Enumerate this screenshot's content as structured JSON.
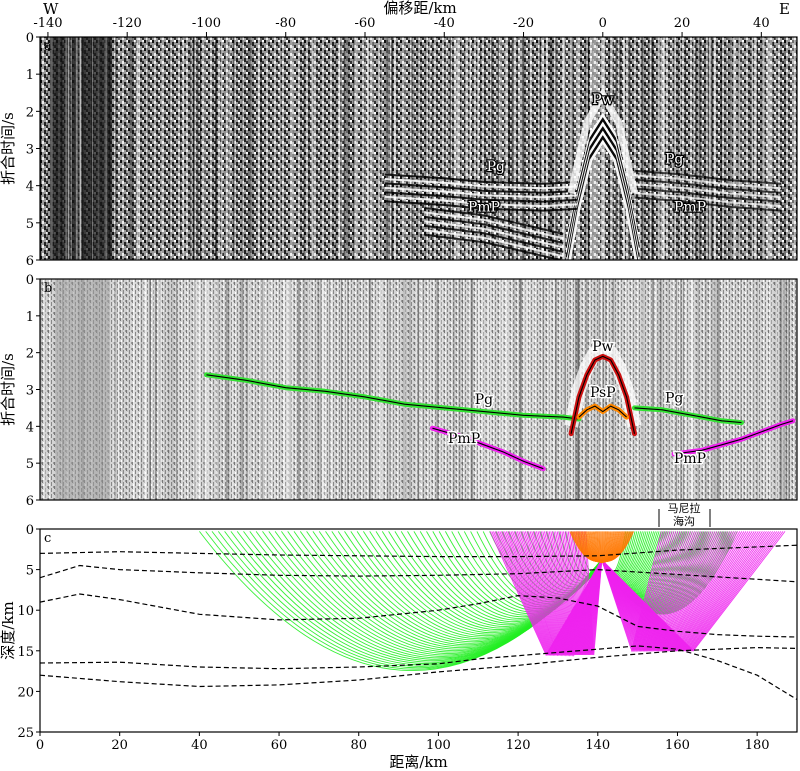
{
  "figure": {
    "top_axis_title": "偏移距/km",
    "west_label": "W",
    "east_label": "E",
    "region_label_line1": "马尼拉",
    "region_label_line2": "海沟"
  },
  "chart_data": [
    {
      "panel": "a",
      "type": "seismic-section",
      "title": "",
      "xlabel": "偏移距/km",
      "ylabel": "折合时间/s",
      "xlim": [
        -142,
        49
      ],
      "ylim": [
        6,
        0
      ],
      "xticks": [
        -140,
        -120,
        -100,
        -80,
        -60,
        -40,
        -20,
        0,
        20,
        40
      ],
      "yticks": [
        0,
        1,
        2,
        3,
        4,
        5,
        6
      ],
      "phase_labels": [
        {
          "text": "Pw",
          "x": 0,
          "y": 1.8
        },
        {
          "text": "Pg",
          "x": -27,
          "y": 3.6
        },
        {
          "text": "PmP",
          "x": -30,
          "y": 4.7
        },
        {
          "text": "Pg",
          "x": 18,
          "y": 3.4
        },
        {
          "text": "PmP",
          "x": 22,
          "y": 4.7
        }
      ]
    },
    {
      "panel": "b",
      "type": "line",
      "title": "",
      "xlabel": "",
      "ylabel": "折合时间/s",
      "xlim": [
        -142,
        49
      ],
      "ylim": [
        6,
        0
      ],
      "yticks": [
        0,
        1,
        2,
        3,
        4,
        5,
        6
      ],
      "series": [
        {
          "phase": "Pg",
          "color": "#33e233",
          "x": [
            -100,
            -90,
            -80,
            -70,
            -60,
            -50,
            -40,
            -30,
            -20,
            -10,
            -6
          ],
          "y": [
            2.6,
            2.75,
            2.95,
            3.05,
            3.2,
            3.4,
            3.5,
            3.6,
            3.7,
            3.75,
            3.8
          ]
        },
        {
          "phase": "Pg",
          "color": "#33e233",
          "x": [
            8,
            15,
            20,
            25,
            30,
            35
          ],
          "y": [
            3.5,
            3.55,
            3.65,
            3.75,
            3.85,
            3.9
          ]
        },
        {
          "phase": "PmP",
          "color": "#ee22ee",
          "x": [
            -43,
            -35,
            -30,
            -25,
            -20,
            -15
          ],
          "y": [
            4.05,
            4.3,
            4.5,
            4.7,
            4.95,
            5.15
          ]
        },
        {
          "phase": "PmP",
          "color": "#ee22ee",
          "x": [
            18,
            25,
            30,
            35,
            40,
            45,
            48
          ],
          "y": [
            4.75,
            4.65,
            4.5,
            4.35,
            4.15,
            3.95,
            3.85
          ]
        },
        {
          "phase": "Pw",
          "color": "#cc1111",
          "x": [
            -8,
            -6,
            -4,
            -2,
            0,
            2,
            4,
            6,
            8
          ],
          "y": [
            4.2,
            3.2,
            2.6,
            2.2,
            2.1,
            2.2,
            2.6,
            3.2,
            4.2
          ]
        },
        {
          "phase": "PsP",
          "color": "#ff8800",
          "x": [
            -6,
            -4,
            -2,
            0,
            2,
            4,
            6
          ],
          "y": [
            3.75,
            3.55,
            3.45,
            3.6,
            3.45,
            3.55,
            3.75
          ]
        }
      ],
      "phase_labels": [
        {
          "text": "Pw",
          "x": 0,
          "y": 1.95
        },
        {
          "text": "PsP",
          "x": 0,
          "y": 3.2
        },
        {
          "text": "Pg",
          "x": -30,
          "y": 3.4
        },
        {
          "text": "PmP",
          "x": -35,
          "y": 4.45
        },
        {
          "text": "Pg",
          "x": 18,
          "y": 3.35
        },
        {
          "text": "PmP",
          "x": 22,
          "y": 5.0
        }
      ]
    },
    {
      "panel": "c",
      "type": "ray-diagram",
      "title": "",
      "xlabel": "距离/km",
      "ylabel": "深度/km",
      "xlim": [
        0,
        190
      ],
      "ylim": [
        25,
        0
      ],
      "xticks": [
        0,
        20,
        40,
        60,
        80,
        100,
        120,
        140,
        160,
        180
      ],
      "yticks": [
        0,
        5,
        10,
        15,
        20,
        25
      ],
      "source": {
        "x": 141,
        "depth": 3.8
      },
      "interfaces": [
        {
          "x": [
            0,
            20,
            40,
            60,
            80,
            100,
            120,
            140,
            160,
            180,
            190
          ],
          "depth": [
            3.0,
            2.8,
            3.0,
            3.2,
            3.3,
            3.4,
            3.4,
            3.3,
            2.6,
            2.2,
            2.0
          ]
        },
        {
          "x": [
            0,
            10,
            20,
            40,
            60,
            80,
            100,
            120,
            140,
            160,
            180,
            190
          ],
          "depth": [
            6.0,
            4.5,
            5.0,
            5.4,
            5.7,
            5.8,
            5.7,
            5.5,
            5.0,
            5.6,
            6.2,
            6.5
          ]
        },
        {
          "x": [
            0,
            10,
            20,
            40,
            60,
            80,
            100,
            110,
            120,
            130,
            140,
            150,
            160,
            170,
            180,
            190
          ],
          "depth": [
            9.0,
            8.0,
            8.7,
            10.5,
            11.2,
            11.0,
            10.0,
            9.2,
            8.2,
            8.5,
            9.5,
            12.0,
            12.6,
            13.0,
            13.2,
            13.3
          ]
        },
        {
          "x": [
            0,
            20,
            40,
            60,
            80,
            100,
            110,
            120,
            130,
            140,
            150,
            160,
            170,
            180,
            190
          ],
          "depth": [
            16.5,
            16.4,
            17.0,
            17.2,
            17.0,
            16.6,
            16.0,
            15.6,
            15.2,
            14.8,
            14.4,
            14.8,
            16.2,
            18.0,
            21.0
          ]
        },
        {
          "x": [
            0,
            20,
            40,
            60,
            80,
            100,
            120,
            140,
            160,
            180,
            190
          ],
          "depth": [
            18.0,
            18.8,
            19.4,
            19.2,
            18.6,
            17.6,
            16.8,
            15.8,
            15.0,
            14.6,
            14.7
          ]
        }
      ],
      "ray_families": [
        {
          "phase": "Pg",
          "color": "#22ee22",
          "x_from": 40,
          "x_to": 135,
          "max_depth": 17.5
        },
        {
          "phase": "Pg",
          "color": "#22ee22",
          "x_from": 147,
          "x_to": 175,
          "max_depth": 10.5
        },
        {
          "phase": "PmP",
          "color": "#ee22ee",
          "x_from": 113,
          "x_to": 137,
          "reflector_depth": 15.5
        },
        {
          "phase": "PmP",
          "color": "#ee22ee",
          "x_from": 156,
          "x_to": 187,
          "reflector_depth": 15.0
        },
        {
          "phase": "PsP",
          "color": "#ff7700",
          "x_from": 133,
          "x_to": 149,
          "max_depth": 3.5
        }
      ]
    }
  ]
}
